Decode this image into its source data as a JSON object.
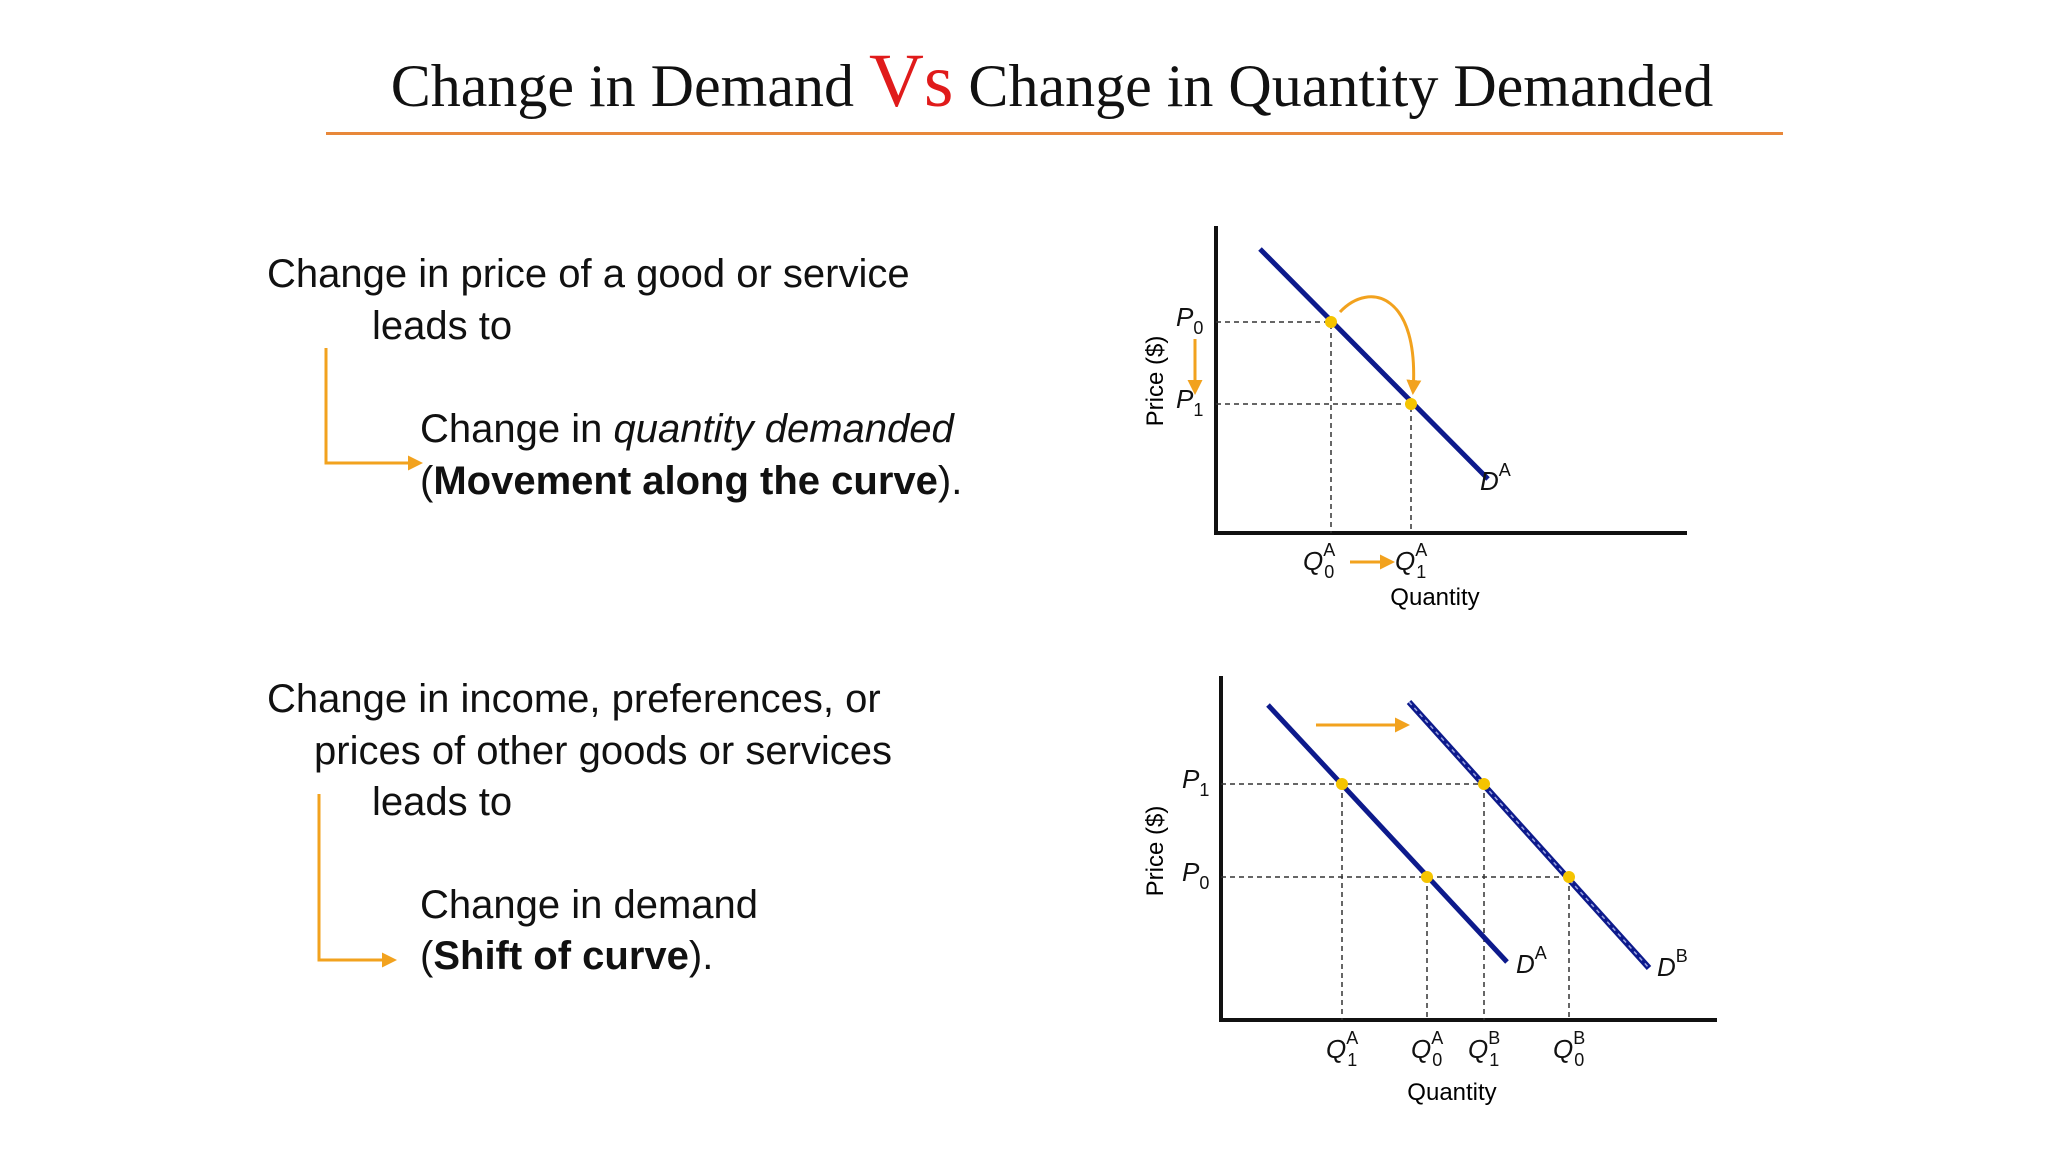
{
  "title": {
    "part1": "Change in Demand",
    "vs": "Vs",
    "part2": "Change in Quantity Demanded"
  },
  "top": {
    "line1": "Change in price of a good or service",
    "line2": "leads to",
    "result_prefix": "Change in ",
    "result_italic": "quantity demanded",
    "paren_open": "(",
    "result_bold": "Movement along the curve",
    "paren_close": ")."
  },
  "bottom": {
    "line1": "Change in income, preferences, or",
    "line2": "prices of other goods or services",
    "line3": "leads to",
    "result": "Change in demand",
    "paren_open": "(",
    "result_bold": "Shift of curve",
    "paren_close": ")."
  },
  "diagram1": {
    "y_axis": "Price ($)",
    "x_axis": "Quantity",
    "labels": [
      {
        "main": "P",
        "sub": "0"
      },
      {
        "main": "P",
        "sub": "1"
      },
      {
        "main": "D",
        "sup": "A"
      },
      {
        "main": "Q",
        "sup": "A",
        "sub": "0"
      },
      {
        "main": "Q",
        "sup": "A",
        "sub": "1"
      }
    ]
  },
  "diagram2": {
    "y_axis": "Price ($)",
    "x_axis": "Quantity",
    "labels": [
      {
        "main": "P",
        "sub": "1"
      },
      {
        "main": "P",
        "sub": "0"
      },
      {
        "main": "D",
        "sup": "A"
      },
      {
        "main": "D",
        "sup": "B"
      },
      {
        "main": "Q",
        "sup": "A",
        "sub": "1"
      },
      {
        "main": "Q",
        "sup": "A",
        "sub": "0"
      },
      {
        "main": "Q",
        "sup": "B",
        "sub": "1"
      },
      {
        "main": "Q",
        "sup": "B",
        "sub": "0"
      }
    ]
  }
}
